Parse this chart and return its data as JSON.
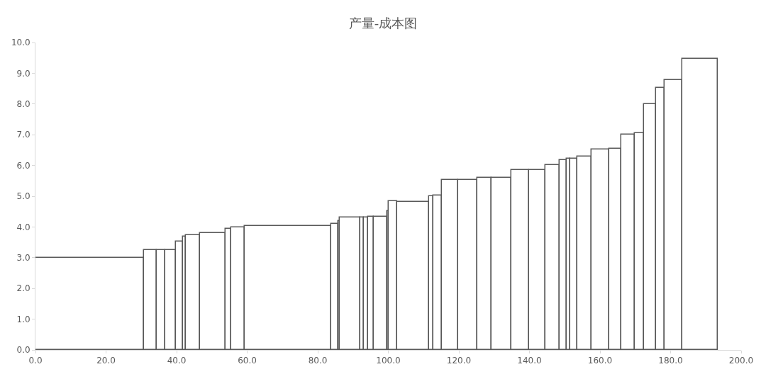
{
  "chart_data": {
    "type": "histogram",
    "title": "产量-成本图",
    "bins": [
      0,
      30.8,
      34.3,
      36.8,
      39.8,
      41.8,
      42.7,
      46.7,
      53.8,
      55.4,
      59.3,
      83.9,
      85.9,
      86.2,
      92.0,
      93.0,
      94.2,
      95.8,
      99.7,
      100.1,
      102.5,
      111.6,
      112.8,
      115.2,
      119.7,
      125.3,
      129.3,
      134.8,
      139.8,
      144.6,
      148.6,
      150.6,
      151.6,
      153.6,
      157.5,
      162.6,
      166.1,
      169.8,
      172.4,
      175.9,
      178.3,
      183.4,
      193.3
    ],
    "values": [
      3.0,
      3.25,
      3.24,
      3.26,
      3.52,
      3.69,
      3.73,
      3.81,
      3.93,
      3.98,
      4.03,
      4.1,
      4.2,
      4.3,
      4.31,
      4.32,
      4.33,
      4.33,
      4.51,
      4.83,
      4.82,
      5.0,
      5.02,
      5.53,
      5.53,
      5.61,
      5.61,
      5.85,
      5.85,
      6.02,
      6.17,
      6.21,
      6.21,
      6.3,
      6.51,
      6.54,
      7.01,
      7.04,
      8.0,
      8.52,
      8.78,
      9.47
    ],
    "color": "#595959",
    "xlim": [
      0,
      200
    ],
    "xticks": [
      {
        "value": 0,
        "label": "0.0"
      },
      {
        "value": 20,
        "label": "20.0"
      },
      {
        "value": 40,
        "label": "40.0"
      },
      {
        "value": 60,
        "label": "60.0"
      },
      {
        "value": 80,
        "label": "80.0"
      },
      {
        "value": 100,
        "label": "100.0"
      },
      {
        "value": 120,
        "label": "120.0"
      },
      {
        "value": 140,
        "label": "140.0"
      },
      {
        "value": 160,
        "label": "160.0"
      },
      {
        "value": 180,
        "label": "180.0"
      },
      {
        "value": 200,
        "label": "200.0"
      }
    ],
    "ylim": [
      0,
      10
    ],
    "yticks": [
      {
        "value": 0,
        "label": "0.0"
      },
      {
        "value": 1,
        "label": "1.0"
      },
      {
        "value": 2,
        "label": "2.0"
      },
      {
        "value": 3,
        "label": "3.0"
      },
      {
        "value": 4,
        "label": "4.0"
      },
      {
        "value": 5,
        "label": "5.0"
      },
      {
        "value": 6,
        "label": "6.0"
      },
      {
        "value": 7,
        "label": "7.0"
      },
      {
        "value": 8,
        "label": "8.0"
      },
      {
        "value": 9,
        "label": "9.0"
      },
      {
        "value": 10,
        "label": "10.0"
      }
    ],
    "grid": false
  }
}
